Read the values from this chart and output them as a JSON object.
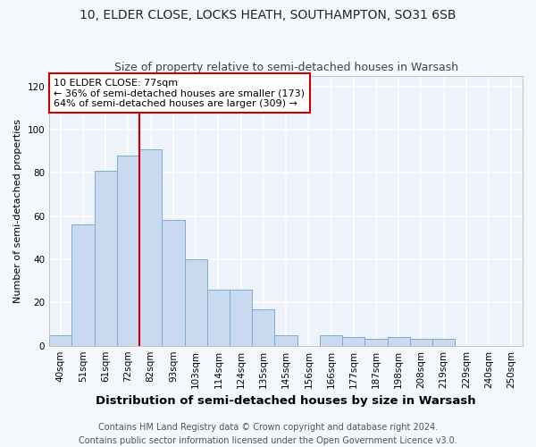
{
  "title": "10, ELDER CLOSE, LOCKS HEATH, SOUTHAMPTON, SO31 6SB",
  "subtitle": "Size of property relative to semi-detached houses in Warsash",
  "xlabel": "Distribution of semi-detached houses by size in Warsash",
  "ylabel": "Number of semi-detached properties",
  "bin_labels": [
    "40sqm",
    "51sqm",
    "61sqm",
    "72sqm",
    "82sqm",
    "93sqm",
    "103sqm",
    "114sqm",
    "124sqm",
    "135sqm",
    "145sqm",
    "156sqm",
    "166sqm",
    "177sqm",
    "187sqm",
    "198sqm",
    "208sqm",
    "219sqm",
    "229sqm",
    "240sqm",
    "250sqm"
  ],
  "bar_values": [
    5,
    56,
    81,
    88,
    91,
    58,
    40,
    26,
    26,
    17,
    5,
    0,
    5,
    4,
    3,
    4,
    3,
    3,
    0,
    0,
    0
  ],
  "bar_color": "#c8d9f0",
  "bar_edge_color": "#7aadd4",
  "property_bin_index": 3,
  "annotation_title": "10 ELDER CLOSE: 77sqm",
  "annotation_line1": "← 36% of semi-detached houses are smaller (173)",
  "annotation_line2": "64% of semi-detached houses are larger (309) →",
  "vline_color": "#cc0000",
  "annotation_box_color": "#cc0000",
  "ylim": [
    0,
    125
  ],
  "yticks": [
    0,
    20,
    40,
    60,
    80,
    100,
    120
  ],
  "footer1": "Contains HM Land Registry data © Crown copyright and database right 2024.",
  "footer2": "Contains public sector information licensed under the Open Government Licence v3.0.",
  "bg_color": "#f4f7fc",
  "plot_bg_color": "#eef2fa",
  "grid_color": "#ffffff",
  "title_fontsize": 10,
  "subtitle_fontsize": 9,
  "xlabel_fontsize": 9.5,
  "ylabel_fontsize": 8,
  "tick_fontsize": 7.5,
  "annotation_fontsize": 8,
  "footer_fontsize": 7
}
